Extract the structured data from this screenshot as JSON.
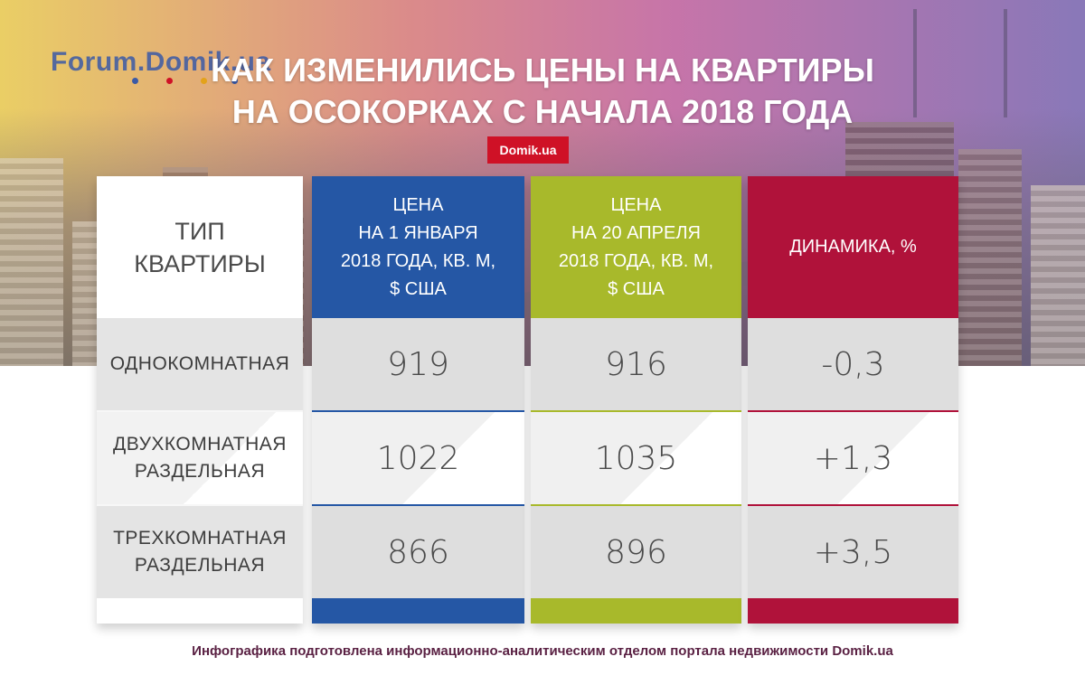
{
  "header": {
    "watermark": "Forum.Domik.ua",
    "title_line1": "КАК ИЗМЕНИЛИСЬ ЦЕНЫ НА КВАРТИРЫ",
    "title_line2": "НА ОСОКОРКАХ С НАЧАЛА 2018 ГОДА",
    "badge": "Domik.ua"
  },
  "colors": {
    "blue": "#2557a5",
    "green": "#a8b92b",
    "red": "#b0123a",
    "brand_red": "#cf1126",
    "footer_text": "#5a2143"
  },
  "chart_data": {
    "type": "table",
    "columns": [
      {
        "key": "type",
        "header": [
          "ТИП",
          "КВАРТИРЫ"
        ]
      },
      {
        "key": "jan",
        "header": [
          "ЦЕНА",
          "НА 1 ЯНВАРЯ",
          "2018 ГОДА, КВ. М,",
          "$ США"
        ]
      },
      {
        "key": "apr",
        "header": [
          "ЦЕНА",
          "НА 20 АПРЕЛЯ",
          "2018 ГОДА, КВ. М,",
          "$ США"
        ]
      },
      {
        "key": "dyn",
        "header": [
          "ДИНАМИКА, %"
        ]
      }
    ],
    "rows": [
      {
        "type": [
          "ОДНОКОМНАТНАЯ"
        ],
        "jan": "919",
        "apr": "916",
        "dyn": "-0,3"
      },
      {
        "type": [
          "ДВУХКОМНАТНАЯ",
          "РАЗДЕЛЬНАЯ"
        ],
        "jan": "1022",
        "apr": "1035",
        "dyn": "+1,3"
      },
      {
        "type": [
          "ТРЕХКОМНАТНАЯ",
          "РАЗДЕЛЬНАЯ"
        ],
        "jan": "866",
        "apr": "896",
        "dyn": "+3,5"
      }
    ]
  },
  "footer": "Инфографика подготовлена информационно-аналитическим отделом портала недвижимости Domik.ua"
}
